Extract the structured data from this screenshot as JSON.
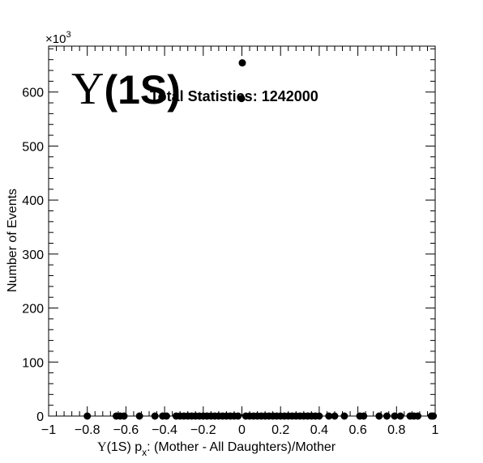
{
  "chart_data": {
    "type": "scatter",
    "title_symbol": "Υ",
    "title_text": "(1S)",
    "annotation": "Total Statistics: 1242000",
    "xlabel_symbol": "Υ",
    "xlabel_state": "(1S) p",
    "xlabel_sub": "x",
    "xlabel_rest": ": (Mother - All Daughters)/Mother",
    "ylabel": "Number of Events",
    "y_multiplier_base": "×10",
    "y_multiplier_exp": "3",
    "xlim": [
      -1,
      1
    ],
    "ylim": [
      0,
      685
    ],
    "x_ticks": [
      -1,
      -0.8,
      -0.6,
      -0.4,
      -0.2,
      0,
      0.2,
      0.4,
      0.6,
      0.8,
      1
    ],
    "x_tick_labels": [
      "−1",
      "−0.8",
      "−0.6",
      "−0.4",
      "−0.2",
      "0",
      "0.2",
      "0.4",
      "0.6",
      "0.8",
      "1"
    ],
    "y_ticks": [
      0,
      100,
      200,
      300,
      400,
      500,
      600
    ],
    "y_tick_labels": [
      "0",
      "100",
      "200",
      "300",
      "400",
      "500",
      "600"
    ],
    "grid": false,
    "points": {
      "x": [
        -0.8,
        -0.65,
        -0.63,
        -0.61,
        -0.53,
        -0.45,
        -0.41,
        -0.39,
        -0.34,
        -0.32,
        -0.3,
        -0.28,
        -0.26,
        -0.24,
        -0.22,
        -0.2,
        -0.18,
        -0.16,
        -0.14,
        -0.12,
        -0.1,
        -0.08,
        -0.06,
        -0.04,
        -0.02,
        -0.002,
        0.002,
        0.02,
        0.04,
        0.06,
        0.08,
        0.1,
        0.12,
        0.14,
        0.16,
        0.18,
        0.2,
        0.22,
        0.24,
        0.26,
        0.28,
        0.3,
        0.32,
        0.34,
        0.36,
        0.38,
        0.4,
        0.45,
        0.48,
        0.53,
        0.61,
        0.63,
        0.71,
        0.75,
        0.79,
        0.82,
        0.87,
        0.89,
        0.91,
        0.98,
        0.99
      ],
      "y": [
        0,
        0,
        0,
        0,
        0,
        0,
        0,
        0,
        0,
        0,
        0,
        0,
        0,
        0,
        0,
        0,
        0,
        0,
        0,
        0,
        0,
        0,
        0,
        0,
        0,
        588,
        654,
        0,
        0,
        0,
        0,
        0,
        0,
        0,
        0,
        0,
        0,
        0,
        0,
        0,
        0,
        0,
        0,
        0,
        0,
        0,
        0,
        0,
        0,
        0,
        0,
        0,
        0,
        0,
        0,
        0,
        0,
        0,
        0,
        0,
        0
      ],
      "unit_multiplier": 1000
    }
  }
}
